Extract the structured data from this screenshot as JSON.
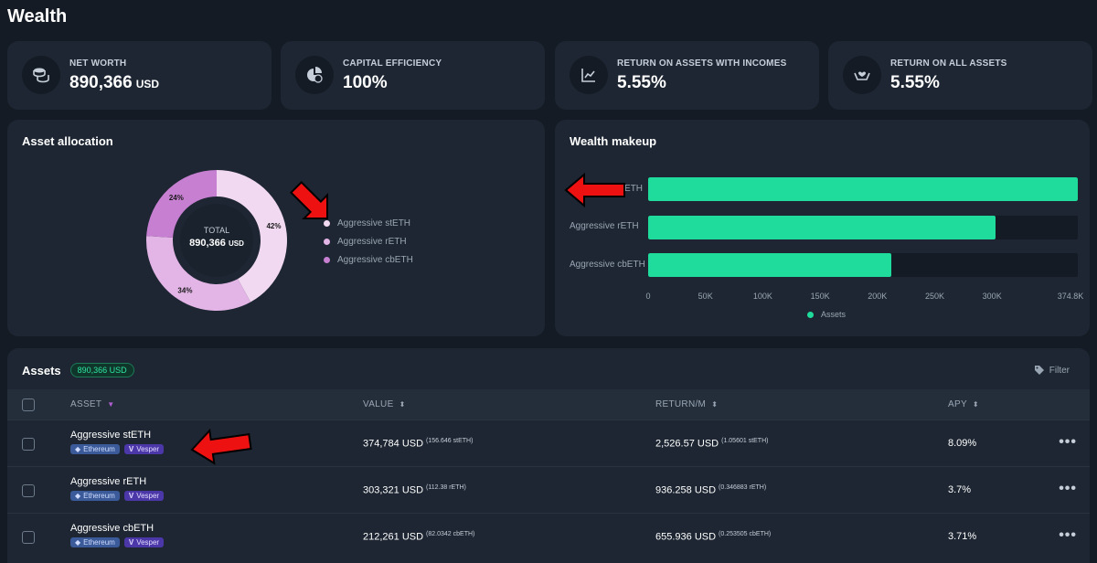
{
  "page": {
    "title": "Wealth"
  },
  "stats": [
    {
      "label": "NET WORTH",
      "value": "890,366",
      "unit": "USD",
      "icon": "coins-icon"
    },
    {
      "label": "CAPITAL EFFICIENCY",
      "value": "100%",
      "unit": "",
      "icon": "pie-dollar-icon"
    },
    {
      "label": "RETURN ON ASSETS WITH INCOMES",
      "value": "5.55%",
      "unit": "",
      "icon": "line-chart-icon"
    },
    {
      "label": "RETURN ON ALL ASSETS",
      "value": "5.55%",
      "unit": "",
      "icon": "hands-heart-icon"
    }
  ],
  "allocation": {
    "title": "Asset allocation",
    "center_label": "TOTAL",
    "center_value": "890,366",
    "center_unit": "USD",
    "slices": [
      {
        "name": "Aggressive stETH",
        "pct_label": "42%",
        "pct": 42,
        "color": "#f2d9f2"
      },
      {
        "name": "Aggressive rETH",
        "pct_label": "34%",
        "pct": 34,
        "color": "#e3b4e6"
      },
      {
        "name": "Aggressive cbETH",
        "pct_label": "24%",
        "pct": 24,
        "color": "#c77fd1"
      }
    ]
  },
  "makeup": {
    "title": "Wealth makeup",
    "bar_color": "#1fdc9c",
    "legend_label": "Assets",
    "max": 374.8,
    "ticks": [
      "0",
      "50K",
      "100K",
      "150K",
      "200K",
      "250K",
      "300K",
      "374.8K"
    ],
    "tick_values": [
      0,
      50,
      100,
      150,
      200,
      250,
      300,
      374.8
    ],
    "bars": [
      {
        "label": "Aggressive stETH",
        "value": 374.784
      },
      {
        "label": "Aggressive rETH",
        "value": 303.321
      },
      {
        "label": "Aggressive cbETH",
        "value": 212.261
      }
    ]
  },
  "assets": {
    "title": "Assets",
    "total_pill": "890,366 USD",
    "filter_label": "Filter",
    "columns": {
      "asset": "ASSET",
      "value": "VALUE",
      "return": "RETURN/M",
      "apy": "APY"
    },
    "tags": {
      "chain": "Ethereum",
      "protocol": "Vesper"
    },
    "rows": [
      {
        "name": "Aggressive stETH",
        "value": "374,784 USD",
        "value_sub": "(156.646 stETH)",
        "ret": "2,526.57 USD",
        "ret_sub": "(1.05601 stETH)",
        "apy": "8.09%"
      },
      {
        "name": "Aggressive rETH",
        "value": "303,321 USD",
        "value_sub": "(112.38 rETH)",
        "ret": "936.258 USD",
        "ret_sub": "(0.346883 rETH)",
        "apy": "3.7%"
      },
      {
        "name": "Aggressive cbETH",
        "value": "212,261 USD",
        "value_sub": "(82.0342 cbETH)",
        "ret": "655.936 USD",
        "ret_sub": "(0.253505 cbETH)",
        "apy": "3.71%"
      }
    ]
  }
}
